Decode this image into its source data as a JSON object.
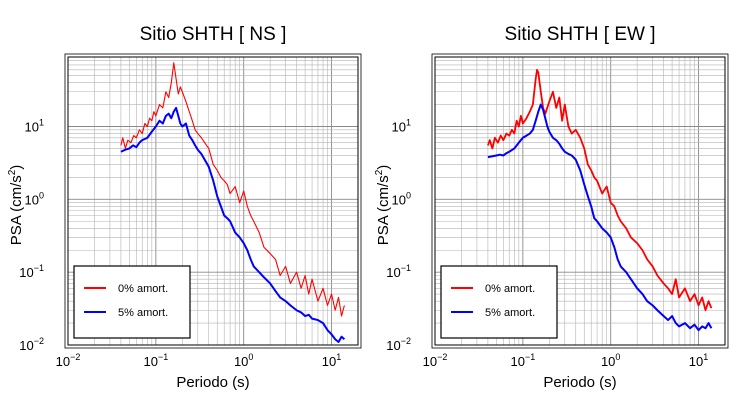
{
  "chart_data": [
    {
      "type": "line",
      "title": "Sitio SHTH [ NS ]",
      "xlabel": "Periodo (s)",
      "ylabel_main": "PSA (cm/s",
      "ylabel_sup": "2",
      "ylabel_close": ")",
      "xscale": "log",
      "yscale": "log",
      "xlim": [
        0.01,
        20
      ],
      "ylim": [
        0.01,
        90
      ],
      "grid": true,
      "legend_position": "bottom-left",
      "x_ticks": [
        {
          "value": 0.01,
          "base": "10",
          "exp": "−2"
        },
        {
          "value": 0.1,
          "base": "10",
          "exp": "−1"
        },
        {
          "value": 1,
          "base": "10",
          "exp": "0"
        },
        {
          "value": 10,
          "base": "10",
          "exp": "1"
        }
      ],
      "y_ticks": [
        {
          "value": 0.01,
          "base": "10",
          "exp": "−2"
        },
        {
          "value": 0.1,
          "base": "10",
          "exp": "−1"
        },
        {
          "value": 1,
          "base": "10",
          "exp": "0"
        },
        {
          "value": 10,
          "base": "10",
          "exp": "1"
        }
      ],
      "series": [
        {
          "name": "0% amort.",
          "color": "#ff0000",
          "x": [
            0.04,
            0.042,
            0.045,
            0.048,
            0.052,
            0.056,
            0.06,
            0.065,
            0.07,
            0.075,
            0.08,
            0.085,
            0.09,
            0.095,
            0.1,
            0.11,
            0.12,
            0.13,
            0.14,
            0.15,
            0.16,
            0.17,
            0.18,
            0.19,
            0.2,
            0.22,
            0.24,
            0.26,
            0.28,
            0.3,
            0.33,
            0.36,
            0.4,
            0.45,
            0.5,
            0.55,
            0.6,
            0.65,
            0.7,
            0.8,
            0.9,
            1.0,
            1.1,
            1.2,
            1.3,
            1.5,
            1.7,
            2.0,
            2.3,
            2.6,
            3.0,
            3.4,
            4.0,
            4.5,
            5.0,
            5.5,
            6.0,
            7.0,
            8.0,
            9.0,
            10.0,
            11.0,
            12.0,
            13.0,
            14.0
          ],
          "y": [
            5.5,
            7.0,
            5.0,
            6.5,
            6.0,
            7.5,
            7.0,
            9.0,
            8.0,
            11.0,
            10.0,
            13.0,
            12.0,
            16.0,
            14.0,
            20.0,
            18.0,
            30.0,
            25.0,
            40.0,
            75.0,
            45.0,
            28.0,
            35.0,
            30.0,
            22.0,
            16.0,
            12.0,
            9.0,
            8.0,
            7.0,
            6.0,
            5.0,
            3.0,
            2.5,
            2.0,
            1.8,
            1.6,
            1.2,
            1.5,
            0.9,
            1.3,
            0.8,
            0.6,
            0.5,
            0.35,
            0.22,
            0.18,
            0.15,
            0.09,
            0.12,
            0.07,
            0.1,
            0.06,
            0.09,
            0.05,
            0.08,
            0.04,
            0.06,
            0.035,
            0.05,
            0.03,
            0.045,
            0.025,
            0.035
          ]
        },
        {
          "name": "5% amort.",
          "color": "#0000ff",
          "x": [
            0.04,
            0.045,
            0.05,
            0.055,
            0.06,
            0.065,
            0.07,
            0.08,
            0.09,
            0.1,
            0.11,
            0.12,
            0.13,
            0.14,
            0.15,
            0.16,
            0.17,
            0.18,
            0.19,
            0.2,
            0.22,
            0.24,
            0.26,
            0.28,
            0.3,
            0.33,
            0.36,
            0.4,
            0.45,
            0.5,
            0.55,
            0.6,
            0.65,
            0.7,
            0.8,
            0.9,
            1.0,
            1.1,
            1.2,
            1.3,
            1.5,
            1.7,
            2.0,
            2.3,
            2.6,
            3.0,
            3.4,
            4.0,
            4.5,
            5.0,
            5.5,
            6.0,
            7.0,
            8.0,
            9.0,
            10.0,
            11.0,
            12.0,
            13.0,
            14.0
          ],
          "y": [
            4.5,
            4.8,
            5.0,
            5.5,
            5.2,
            6.0,
            6.5,
            7.0,
            8.5,
            10.0,
            12.0,
            11.0,
            14.0,
            15.0,
            13.0,
            16.0,
            18.0,
            14.0,
            11.0,
            10.0,
            11.0,
            7.5,
            6.5,
            5.5,
            4.8,
            4.2,
            3.5,
            2.8,
            1.8,
            1.1,
            0.8,
            0.6,
            0.55,
            0.5,
            0.35,
            0.3,
            0.25,
            0.2,
            0.15,
            0.12,
            0.1,
            0.085,
            0.07,
            0.055,
            0.045,
            0.04,
            0.035,
            0.03,
            0.028,
            0.025,
            0.026,
            0.023,
            0.022,
            0.02,
            0.016,
            0.014,
            0.012,
            0.011,
            0.013,
            0.012
          ]
        }
      ]
    },
    {
      "type": "line",
      "title": "Sitio SHTH [ EW ]",
      "xlabel": "Periodo (s)",
      "ylabel_main": "PSA (cm/s",
      "ylabel_sup": "2",
      "ylabel_close": ")",
      "xscale": "log",
      "yscale": "log",
      "xlim": [
        0.01,
        20
      ],
      "ylim": [
        0.01,
        90
      ],
      "grid": true,
      "legend_position": "bottom-left",
      "x_ticks": [
        {
          "value": 0.01,
          "base": "10",
          "exp": "−2"
        },
        {
          "value": 0.1,
          "base": "10",
          "exp": "−1"
        },
        {
          "value": 1,
          "base": "10",
          "exp": "0"
        },
        {
          "value": 10,
          "base": "10",
          "exp": "1"
        }
      ],
      "y_ticks": [
        {
          "value": 0.01,
          "base": "10",
          "exp": "−2"
        },
        {
          "value": 0.1,
          "base": "10",
          "exp": "−1"
        },
        {
          "value": 1,
          "base": "10",
          "exp": "0"
        },
        {
          "value": 10,
          "base": "10",
          "exp": "1"
        }
      ],
      "series": [
        {
          "name": "0% amort.",
          "color": "#ff0000",
          "x": [
            0.04,
            0.042,
            0.045,
            0.048,
            0.052,
            0.056,
            0.06,
            0.065,
            0.07,
            0.075,
            0.08,
            0.085,
            0.09,
            0.095,
            0.1,
            0.11,
            0.12,
            0.13,
            0.14,
            0.145,
            0.15,
            0.16,
            0.17,
            0.18,
            0.2,
            0.22,
            0.24,
            0.26,
            0.28,
            0.3,
            0.33,
            0.36,
            0.4,
            0.45,
            0.5,
            0.55,
            0.6,
            0.65,
            0.7,
            0.8,
            0.9,
            1.0,
            1.1,
            1.2,
            1.3,
            1.5,
            1.7,
            2.0,
            2.3,
            2.6,
            3.0,
            3.4,
            4.0,
            4.5,
            5.0,
            5.5,
            6.0,
            7.0,
            8.0,
            9.0,
            10.0,
            11.0,
            12.0,
            13.0,
            14.0
          ],
          "y": [
            5.5,
            6.5,
            5.0,
            7.0,
            6.0,
            7.5,
            6.5,
            8.0,
            7.5,
            9.0,
            8.0,
            12.0,
            10.0,
            14.0,
            11.0,
            13.0,
            16.0,
            20.0,
            45.0,
            60.0,
            55.0,
            30.0,
            18.0,
            15.0,
            22.0,
            30.0,
            18.0,
            25.0,
            12.0,
            20.0,
            10.0,
            8.0,
            9.0,
            7.0,
            5.0,
            3.0,
            2.5,
            2.0,
            1.8,
            1.2,
            1.5,
            0.9,
            0.8,
            0.6,
            0.5,
            0.4,
            0.3,
            0.25,
            0.2,
            0.15,
            0.12,
            0.09,
            0.07,
            0.06,
            0.05,
            0.08,
            0.045,
            0.06,
            0.04,
            0.05,
            0.035,
            0.045,
            0.03,
            0.04,
            0.032
          ]
        },
        {
          "name": "5% amort.",
          "color": "#0000ff",
          "x": [
            0.04,
            0.045,
            0.05,
            0.055,
            0.06,
            0.065,
            0.07,
            0.08,
            0.09,
            0.1,
            0.11,
            0.12,
            0.13,
            0.14,
            0.15,
            0.16,
            0.17,
            0.18,
            0.19,
            0.2,
            0.22,
            0.24,
            0.26,
            0.28,
            0.3,
            0.33,
            0.36,
            0.4,
            0.45,
            0.5,
            0.55,
            0.6,
            0.65,
            0.7,
            0.8,
            0.9,
            1.0,
            1.1,
            1.2,
            1.3,
            1.5,
            1.7,
            2.0,
            2.3,
            2.6,
            3.0,
            3.4,
            4.0,
            4.5,
            5.0,
            5.5,
            6.0,
            7.0,
            8.0,
            9.0,
            10.0,
            11.0,
            12.0,
            13.0,
            14.0
          ],
          "y": [
            3.8,
            3.9,
            4.0,
            4.1,
            4.0,
            4.3,
            4.5,
            5.0,
            6.0,
            7.0,
            7.5,
            8.0,
            9.0,
            12.0,
            16.0,
            20.0,
            17.0,
            13.0,
            10.0,
            8.5,
            7.0,
            6.5,
            5.8,
            5.0,
            4.5,
            4.2,
            4.0,
            3.5,
            2.5,
            1.6,
            1.1,
            0.8,
            0.55,
            0.5,
            0.4,
            0.35,
            0.3,
            0.22,
            0.15,
            0.12,
            0.1,
            0.08,
            0.06,
            0.05,
            0.04,
            0.035,
            0.03,
            0.025,
            0.022,
            0.025,
            0.02,
            0.018,
            0.02,
            0.017,
            0.019,
            0.016,
            0.018,
            0.017,
            0.02,
            0.017
          ]
        }
      ]
    }
  ]
}
